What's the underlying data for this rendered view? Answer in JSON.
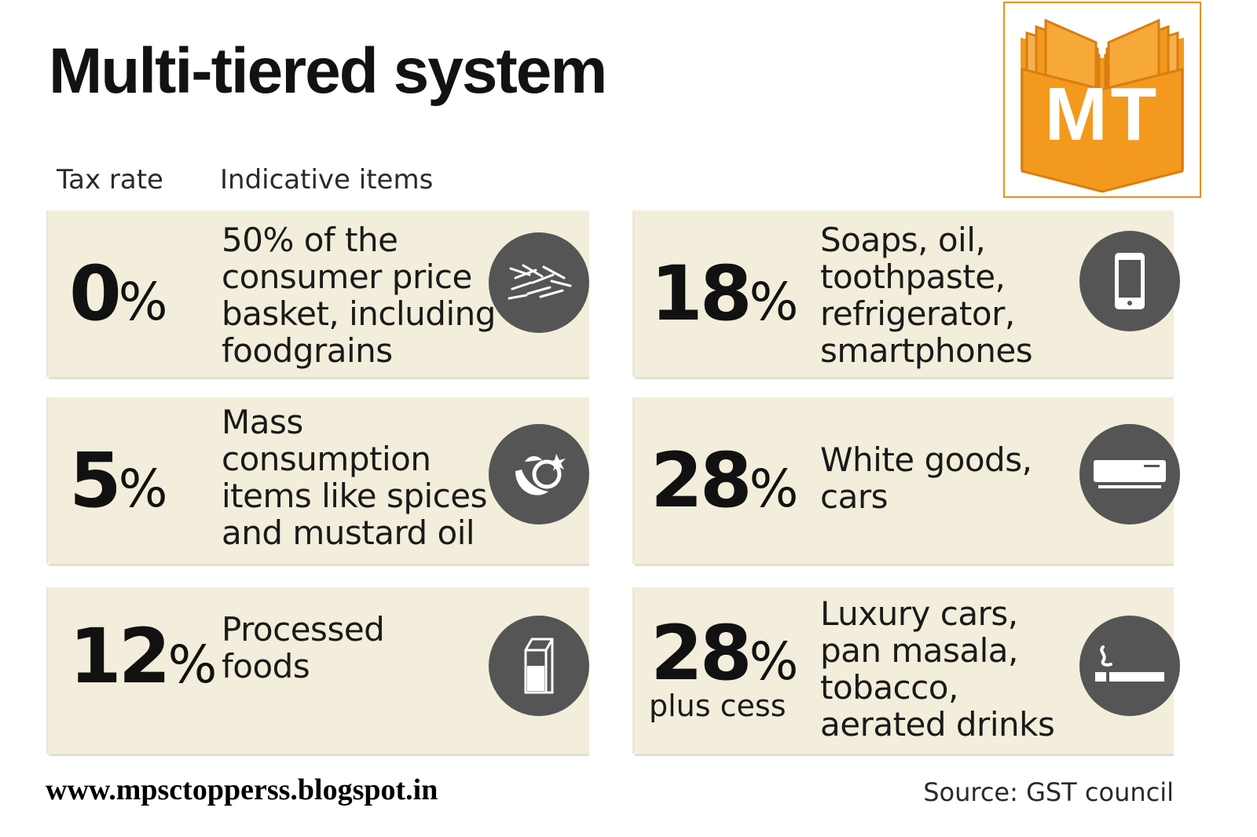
{
  "title": "Multi-tiered system",
  "columns": {
    "rate": "Tax rate",
    "items": "Indicative items"
  },
  "logo": {
    "text": "MT",
    "accent": "#f39a1e"
  },
  "cards": [
    {
      "rate": "0",
      "pct": "%",
      "note": "",
      "items": "50% of the\nconsumer price\nbasket, including\nfoodgrains",
      "icon": "grains-icon"
    },
    {
      "rate": "5",
      "pct": "%",
      "note": "",
      "items": "Mass\nconsumption\nitems like spices\nand mustard oil",
      "icon": "spices-icon"
    },
    {
      "rate": "12",
      "pct": "%",
      "note": "",
      "items": "Processed\nfoods",
      "icon": "milk-carton-icon"
    },
    {
      "rate": "18",
      "pct": "%",
      "note": "",
      "items": "Soaps, oil,\ntoothpaste,\nrefrigerator,\nsmartphones",
      "icon": "smartphone-icon"
    },
    {
      "rate": "28",
      "pct": "%",
      "note": "",
      "items": "White goods,\ncars",
      "icon": "air-conditioner-icon"
    },
    {
      "rate": "28",
      "pct": "%",
      "note": "plus cess",
      "items": "Luxury cars,\npan masala,\ntobacco,\naerated drinks",
      "icon": "cigarette-icon"
    }
  ],
  "footer": {
    "url": "www.mpsctopperss.blogspot.in",
    "source": "Source: GST council"
  },
  "colors": {
    "card": "#f2eedb",
    "icon_bg": "#555555",
    "logo_orange": "#f39a1e"
  }
}
